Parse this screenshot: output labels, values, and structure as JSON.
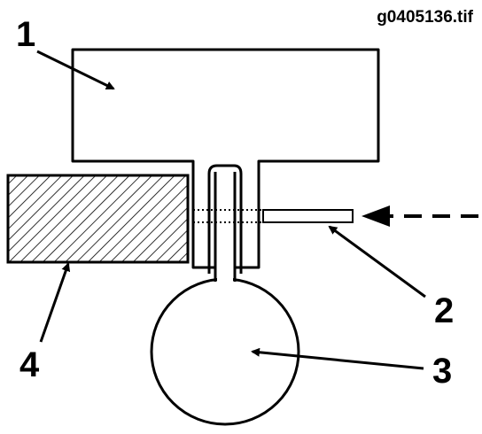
{
  "figure": {
    "file_id": "g0405136.tif",
    "callouts": [
      "1",
      "2",
      "3",
      "4"
    ]
  },
  "colors": {
    "ink": "#000000",
    "background": "#ffffff"
  }
}
